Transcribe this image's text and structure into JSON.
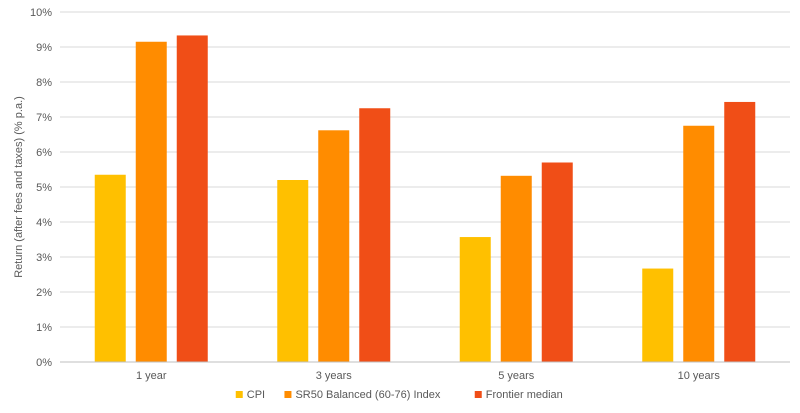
{
  "chart_data": {
    "type": "bar",
    "categories": [
      "1 year",
      "3 years",
      "5 years",
      "10 years"
    ],
    "series": [
      {
        "name": "CPI",
        "color": "#FFC000",
        "values": [
          5.35,
          5.2,
          3.57,
          2.67
        ]
      },
      {
        "name": "SR50 Balanced (60-76) Index",
        "color": "#FF8C00",
        "values": [
          9.15,
          6.62,
          5.32,
          6.75
        ]
      },
      {
        "name": "Frontier median",
        "color": "#F04E17",
        "values": [
          9.33,
          7.25,
          5.7,
          7.43
        ]
      }
    ],
    "title": "",
    "xlabel": "",
    "ylabel": "Return (after fees and taxes) (% p.a.)",
    "ylim": [
      0,
      10
    ],
    "yticks": [
      "0%",
      "1%",
      "2%",
      "3%",
      "4%",
      "5%",
      "6%",
      "7%",
      "8%",
      "9%",
      "10%"
    ],
    "grid": true,
    "legend_position": "bottom"
  }
}
